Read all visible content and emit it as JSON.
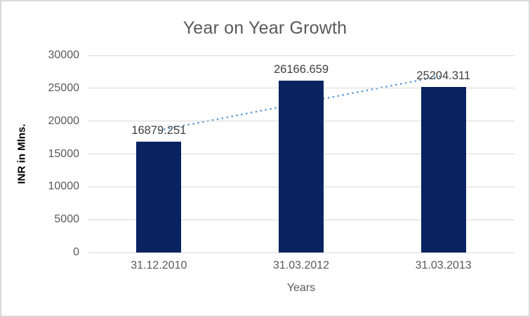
{
  "chart_data": {
    "type": "bar",
    "title": "Year on Year Growth",
    "xlabel": "Years",
    "ylabel": "INR in Mlns.",
    "categories": [
      "31.12.2010",
      "31.03.2012",
      "31.03.2013"
    ],
    "values": [
      16879.251,
      26166.659,
      25204.311
    ],
    "data_labels": [
      "16879.251",
      "26166.659",
      "25204.311"
    ],
    "ylim": [
      0,
      30000
    ],
    "y_ticks": [
      0,
      5000,
      10000,
      15000,
      20000,
      25000,
      30000
    ],
    "grid": "horizontal",
    "legend": "none",
    "colors": {
      "bar": "#08235f",
      "trendline": "#5b9bd5",
      "gridline": "#d9d9d9",
      "axis_line": "#d9d9d9",
      "title_text": "#595959",
      "tick_text": "#595959",
      "data_label_text": "#404040",
      "frame_border": "#d9d9d9"
    },
    "trendline": {
      "kind": "linear",
      "style": "dotted"
    }
  }
}
